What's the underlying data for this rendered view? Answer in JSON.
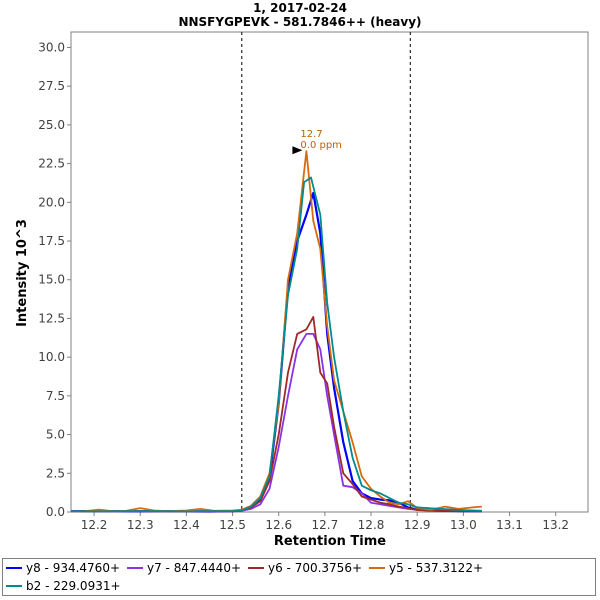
{
  "chart_data": {
    "type": "line",
    "title": "1, 2017-02-24",
    "subtitle": "NNSFYGPEVK - 581.7846++ (heavy)",
    "xlabel": "Retention Time",
    "ylabel": "Intensity 10^3",
    "xlim": [
      12.15,
      13.27
    ],
    "ylim": [
      0,
      31
    ],
    "x_ticks": [
      "12.2",
      "12.3",
      "12.4",
      "12.5",
      "12.6",
      "12.7",
      "12.8",
      "12.9",
      "13.0",
      "13.1",
      "13.2"
    ],
    "y_ticks": [
      "0.0",
      "2.5",
      "5.0",
      "7.5",
      "10.0",
      "12.5",
      "15.0",
      "17.5",
      "20.0",
      "22.5",
      "25.0",
      "27.5",
      "30.0"
    ],
    "grid": false,
    "legend_position": "bottom",
    "boundaries": [
      12.52,
      12.885
    ],
    "annotation": {
      "x": 12.66,
      "y": 23.3,
      "label_rt": "12.7",
      "label_ppm": "0.0 ppm",
      "color": "#c06000"
    },
    "series": [
      {
        "name": "y8 - 934.4760+",
        "color": "#0000ff",
        "width": 2.2,
        "points": [
          [
            12.15,
            0.05
          ],
          [
            12.2,
            0.06
          ],
          [
            12.25,
            0.05
          ],
          [
            12.3,
            0.04
          ],
          [
            12.35,
            0.05
          ],
          [
            12.4,
            0.04
          ],
          [
            12.45,
            0.03
          ],
          [
            12.5,
            0.05
          ],
          [
            12.52,
            0.1
          ],
          [
            12.54,
            0.3
          ],
          [
            12.56,
            0.8
          ],
          [
            12.58,
            2.2
          ],
          [
            12.6,
            7.0
          ],
          [
            12.62,
            14.5
          ],
          [
            12.64,
            17.5
          ],
          [
            12.66,
            19.2
          ],
          [
            12.675,
            20.6
          ],
          [
            12.69,
            18.0
          ],
          [
            12.705,
            11.5
          ],
          [
            12.72,
            8.0
          ],
          [
            12.74,
            4.5
          ],
          [
            12.76,
            2.0
          ],
          [
            12.78,
            1.2
          ],
          [
            12.8,
            0.9
          ],
          [
            12.82,
            0.8
          ],
          [
            12.84,
            0.75
          ],
          [
            12.86,
            0.6
          ],
          [
            12.88,
            0.3
          ],
          [
            12.9,
            0.15
          ],
          [
            12.95,
            0.08
          ],
          [
            13.0,
            0.05
          ],
          [
            13.04,
            0.05
          ]
        ]
      },
      {
        "name": "y7 - 847.4440+",
        "color": "#8b32e6",
        "width": 1.8,
        "points": [
          [
            12.15,
            0.06
          ],
          [
            12.2,
            0.05
          ],
          [
            12.25,
            0.05
          ],
          [
            12.3,
            0.06
          ],
          [
            12.35,
            0.04
          ],
          [
            12.4,
            0.05
          ],
          [
            12.45,
            0.05
          ],
          [
            12.5,
            0.05
          ],
          [
            12.52,
            0.08
          ],
          [
            12.54,
            0.2
          ],
          [
            12.56,
            0.5
          ],
          [
            12.58,
            1.5
          ],
          [
            12.6,
            4.2
          ],
          [
            12.62,
            7.5
          ],
          [
            12.64,
            10.5
          ],
          [
            12.66,
            11.5
          ],
          [
            12.675,
            11.5
          ],
          [
            12.69,
            10.5
          ],
          [
            12.705,
            7.5
          ],
          [
            12.72,
            5.0
          ],
          [
            12.74,
            1.7
          ],
          [
            12.76,
            1.6
          ],
          [
            12.78,
            1.2
          ],
          [
            12.8,
            0.6
          ],
          [
            12.82,
            0.5
          ],
          [
            12.84,
            0.4
          ],
          [
            12.86,
            0.3
          ],
          [
            12.88,
            0.2
          ],
          [
            12.9,
            0.15
          ],
          [
            12.95,
            0.1
          ],
          [
            13.0,
            0.08
          ],
          [
            13.04,
            0.06
          ]
        ]
      },
      {
        "name": "y6 - 700.3756+",
        "color": "#a02828",
        "width": 1.8,
        "points": [
          [
            12.15,
            0.04
          ],
          [
            12.2,
            0.05
          ],
          [
            12.25,
            0.06
          ],
          [
            12.3,
            0.05
          ],
          [
            12.35,
            0.05
          ],
          [
            12.4,
            0.04
          ],
          [
            12.45,
            0.05
          ],
          [
            12.5,
            0.05
          ],
          [
            12.52,
            0.1
          ],
          [
            12.54,
            0.3
          ],
          [
            12.56,
            0.7
          ],
          [
            12.58,
            2.0
          ],
          [
            12.6,
            5.0
          ],
          [
            12.62,
            9.0
          ],
          [
            12.64,
            11.5
          ],
          [
            12.66,
            11.8
          ],
          [
            12.675,
            12.6
          ],
          [
            12.69,
            9.0
          ],
          [
            12.705,
            8.3
          ],
          [
            12.72,
            5.5
          ],
          [
            12.74,
            2.5
          ],
          [
            12.76,
            1.8
          ],
          [
            12.78,
            1.0
          ],
          [
            12.8,
            0.8
          ],
          [
            12.82,
            0.6
          ],
          [
            12.84,
            0.5
          ],
          [
            12.86,
            0.35
          ],
          [
            12.88,
            0.25
          ],
          [
            12.9,
            0.12
          ],
          [
            12.95,
            0.08
          ],
          [
            13.0,
            0.05
          ],
          [
            13.04,
            0.05
          ]
        ]
      },
      {
        "name": "y5 - 537.3122+",
        "color": "#d86a10",
        "width": 1.8,
        "points": [
          [
            12.15,
            0.03
          ],
          [
            12.18,
            0.05
          ],
          [
            12.21,
            0.15
          ],
          [
            12.24,
            0.05
          ],
          [
            12.27,
            0.08
          ],
          [
            12.3,
            0.25
          ],
          [
            12.33,
            0.1
          ],
          [
            12.36,
            0.05
          ],
          [
            12.4,
            0.1
          ],
          [
            12.43,
            0.2
          ],
          [
            12.46,
            0.08
          ],
          [
            12.5,
            0.1
          ],
          [
            12.52,
            0.15
          ],
          [
            12.54,
            0.4
          ],
          [
            12.56,
            1.0
          ],
          [
            12.58,
            2.5
          ],
          [
            12.6,
            7.0
          ],
          [
            12.62,
            15.0
          ],
          [
            12.64,
            18.0
          ],
          [
            12.66,
            23.3
          ],
          [
            12.675,
            18.8
          ],
          [
            12.69,
            17.0
          ],
          [
            12.705,
            12.0
          ],
          [
            12.72,
            8.5
          ],
          [
            12.74,
            6.5
          ],
          [
            12.76,
            4.5
          ],
          [
            12.78,
            2.3
          ],
          [
            12.8,
            1.5
          ],
          [
            12.82,
            1.0
          ],
          [
            12.84,
            0.6
          ],
          [
            12.86,
            0.5
          ],
          [
            12.88,
            0.7
          ],
          [
            12.9,
            0.25
          ],
          [
            12.93,
            0.15
          ],
          [
            12.96,
            0.35
          ],
          [
            12.99,
            0.2
          ],
          [
            13.02,
            0.3
          ],
          [
            13.04,
            0.35
          ]
        ]
      },
      {
        "name": "b2 - 229.0931+",
        "color": "#008c8c",
        "width": 1.8,
        "points": [
          [
            12.15,
            0.05
          ],
          [
            12.2,
            0.04
          ],
          [
            12.25,
            0.05
          ],
          [
            12.3,
            0.05
          ],
          [
            12.35,
            0.05
          ],
          [
            12.4,
            0.04
          ],
          [
            12.45,
            0.05
          ],
          [
            12.5,
            0.06
          ],
          [
            12.52,
            0.1
          ],
          [
            12.54,
            0.35
          ],
          [
            12.56,
            0.9
          ],
          [
            12.58,
            2.3
          ],
          [
            12.6,
            7.5
          ],
          [
            12.62,
            14.0
          ],
          [
            12.64,
            17.0
          ],
          [
            12.655,
            21.3
          ],
          [
            12.67,
            21.6
          ],
          [
            12.69,
            19.2
          ],
          [
            12.705,
            13.5
          ],
          [
            12.72,
            10.0
          ],
          [
            12.74,
            6.5
          ],
          [
            12.76,
            3.5
          ],
          [
            12.78,
            1.7
          ],
          [
            12.8,
            1.4
          ],
          [
            12.82,
            1.2
          ],
          [
            12.84,
            0.9
          ],
          [
            12.86,
            0.6
          ],
          [
            12.88,
            0.5
          ],
          [
            12.9,
            0.3
          ],
          [
            12.95,
            0.2
          ],
          [
            13.0,
            0.12
          ],
          [
            13.04,
            0.08
          ]
        ]
      }
    ]
  }
}
